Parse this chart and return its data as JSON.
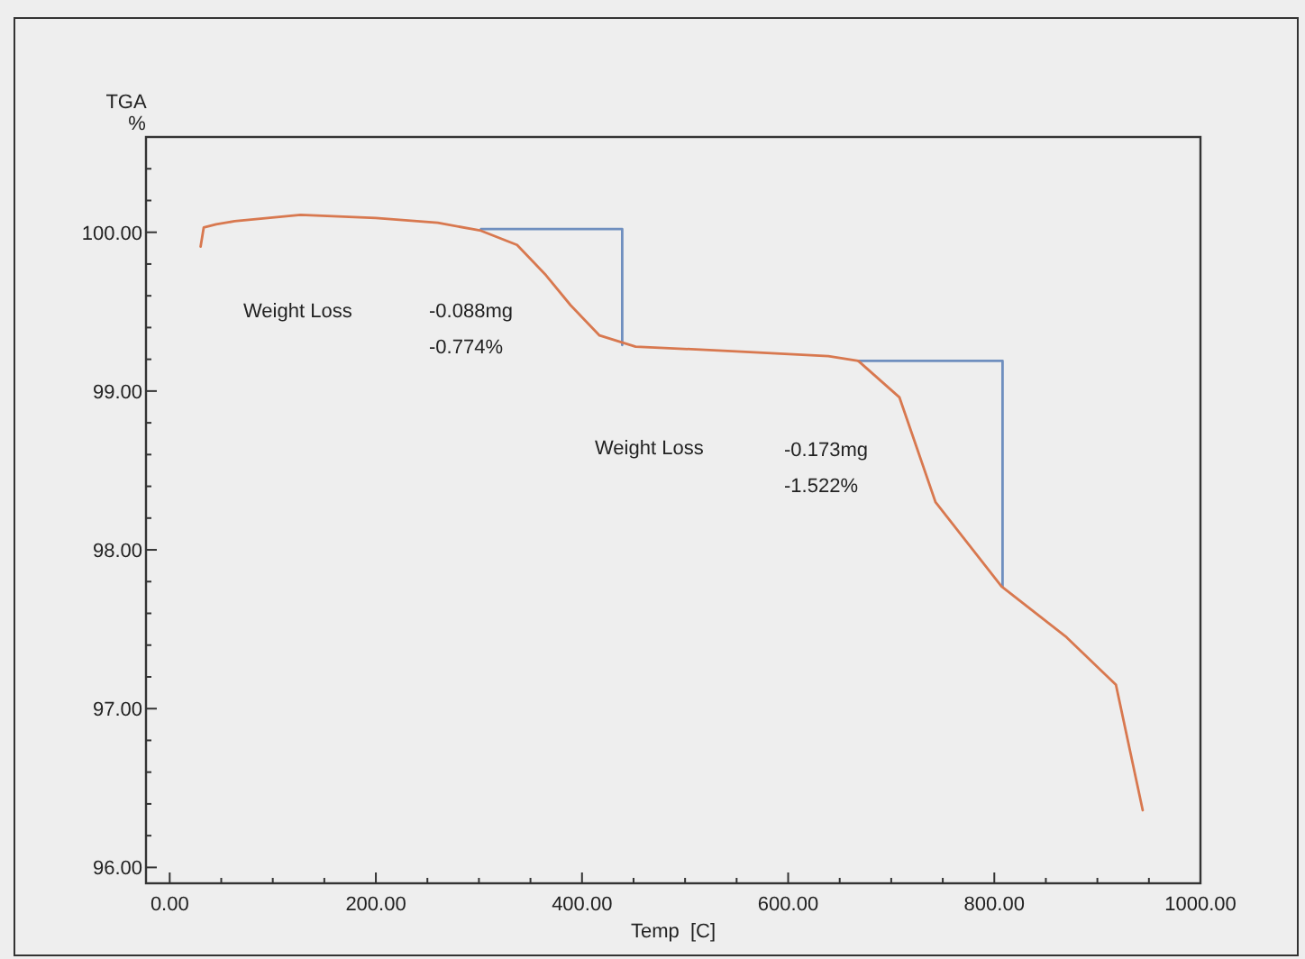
{
  "chart_data": {
    "type": "line",
    "xlabel": "Temp  [C]",
    "ylabel": "TGA %",
    "xlim": [
      -23,
      1000
    ],
    "ylim": [
      95.9,
      100.6
    ],
    "xticks": [
      {
        "value": 0,
        "label": "0.00"
      },
      {
        "value": 50,
        "label": null
      },
      {
        "value": 100,
        "label": null
      },
      {
        "value": 150,
        "label": null
      },
      {
        "value": 200,
        "label": "200.00"
      },
      {
        "value": 250,
        "label": null
      },
      {
        "value": 300,
        "label": null
      },
      {
        "value": 350,
        "label": null
      },
      {
        "value": 400,
        "label": "400.00"
      },
      {
        "value": 450,
        "label": null
      },
      {
        "value": 500,
        "label": null
      },
      {
        "value": 550,
        "label": null
      },
      {
        "value": 600,
        "label": "600.00"
      },
      {
        "value": 650,
        "label": null
      },
      {
        "value": 700,
        "label": null
      },
      {
        "value": 750,
        "label": null
      },
      {
        "value": 800,
        "label": "800.00"
      },
      {
        "value": 850,
        "label": null
      },
      {
        "value": 900,
        "label": null
      },
      {
        "value": 950,
        "label": null
      },
      {
        "value": 1000,
        "label": "1000.00"
      }
    ],
    "yticks": [
      {
        "value": 96,
        "label": "96.00"
      },
      {
        "value": 96.2,
        "label": null
      },
      {
        "value": 96.4,
        "label": null
      },
      {
        "value": 96.6,
        "label": null
      },
      {
        "value": 96.8,
        "label": null
      },
      {
        "value": 97,
        "label": "97.00"
      },
      {
        "value": 97.2,
        "label": null
      },
      {
        "value": 97.4,
        "label": null
      },
      {
        "value": 97.6,
        "label": null
      },
      {
        "value": 97.8,
        "label": null
      },
      {
        "value": 98,
        "label": "98.00"
      },
      {
        "value": 98.2,
        "label": null
      },
      {
        "value": 98.4,
        "label": null
      },
      {
        "value": 98.6,
        "label": null
      },
      {
        "value": 98.8,
        "label": null
      },
      {
        "value": 99,
        "label": "99.00"
      },
      {
        "value": 99.2,
        "label": null
      },
      {
        "value": 99.4,
        "label": null
      },
      {
        "value": 99.6,
        "label": null
      },
      {
        "value": 99.8,
        "label": null
      },
      {
        "value": 100,
        "label": "100.00"
      },
      {
        "value": 100.2,
        "label": null
      },
      {
        "value": 100.4,
        "label": null
      }
    ],
    "series": [
      {
        "color": "#6f8fbf",
        "x": [
          302,
          439,
          439
        ],
        "values": [
          100.02,
          100.02,
          99.29
        ]
      },
      {
        "color": "#6f8fbf",
        "x": [
          668,
          808,
          808
        ],
        "values": [
          99.19,
          99.19,
          97.77
        ]
      },
      {
        "color": "#d8784f",
        "x": [
          30,
          33,
          45,
          63,
          127,
          200,
          260,
          302,
          337,
          365,
          389,
          417,
          452,
          550,
          639,
          668,
          708,
          743,
          807,
          870,
          918,
          944
        ],
        "values": [
          99.91,
          100.03,
          100.05,
          100.07,
          100.11,
          100.09,
          100.06,
          100.01,
          99.92,
          99.73,
          99.54,
          99.35,
          99.28,
          99.25,
          99.22,
          99.19,
          98.96,
          98.3,
          97.77,
          97.45,
          97.15,
          96.36
        ]
      }
    ],
    "annotations": [
      "Weight Loss",
      "-0.088mg",
      "-0.774%",
      "Weight Loss",
      "-0.173mg",
      "-1.522%"
    ],
    "grid": false,
    "marker": "none",
    "line_style": "solid"
  }
}
